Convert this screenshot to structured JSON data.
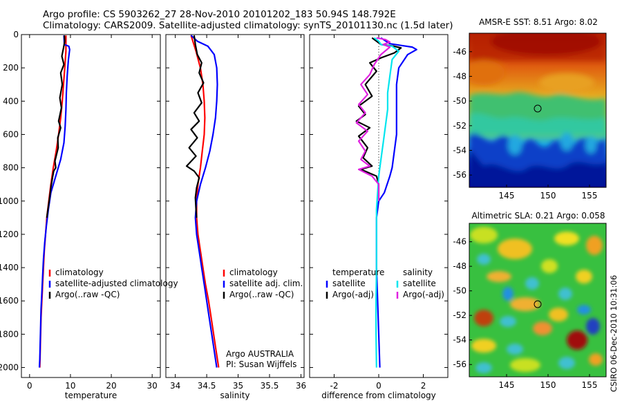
{
  "header": {
    "title_line1": "Argo profile: CS 5903262_27 28-Nov-2010 20101202_183 50.94S 148.792E",
    "title_line2": "Climatology: CARS2009. Satellite-adjusted climatology: synTS_20101130.nc (1.5d later)"
  },
  "footer_stamp": "CSIRO 06-Dec-2010 10:31:06",
  "colors": {
    "climatology": "#ff0000",
    "satellite": "#0000ff",
    "argo": "#000000",
    "sat_salinity": "#00e5ee",
    "argo_salinity": "#e020e0"
  },
  "chart_data": [
    {
      "type": "line",
      "xlabel": "temperature",
      "ylabel": "",
      "xlim": [
        -2,
        32
      ],
      "ylim": [
        2060,
        0
      ],
      "xticks": [
        "0",
        "10",
        "20",
        "30"
      ],
      "yticks": [
        "0",
        "200",
        "400",
        "600",
        "800",
        "1000",
        "1200",
        "1400",
        "1600",
        "1800",
        "2000"
      ],
      "legend": [
        "climatology",
        "satellite-adjusted climatology",
        "Argo(..raw -QC)"
      ],
      "series": [
        {
          "name": "climatology",
          "color": "#ff0000",
          "points": [
            [
              8.9,
              5
            ],
            [
              8.9,
              100
            ],
            [
              8.6,
              200
            ],
            [
              8.3,
              300
            ],
            [
              8.0,
              400
            ],
            [
              7.6,
              500
            ],
            [
              7.1,
              600
            ],
            [
              6.5,
              700
            ],
            [
              5.8,
              800
            ],
            [
              5.2,
              900
            ],
            [
              4.7,
              1000
            ],
            [
              4.2,
              1100
            ],
            [
              3.9,
              1200
            ],
            [
              3.6,
              1300
            ],
            [
              3.4,
              1400
            ],
            [
              3.2,
              1500
            ],
            [
              3.0,
              1600
            ],
            [
              2.8,
              1700
            ],
            [
              2.7,
              1800
            ],
            [
              2.6,
              1900
            ],
            [
              2.5,
              2000
            ]
          ]
        },
        {
          "name": "satellite-adjusted climatology",
          "color": "#0000ff",
          "points": [
            [
              8.4,
              5
            ],
            [
              8.5,
              60
            ],
            [
              9.6,
              70
            ],
            [
              9.8,
              90
            ],
            [
              9.5,
              150
            ],
            [
              9.2,
              250
            ],
            [
              9.0,
              350
            ],
            [
              8.9,
              450
            ],
            [
              8.7,
              550
            ],
            [
              8.4,
              650
            ],
            [
              7.6,
              750
            ],
            [
              6.4,
              850
            ],
            [
              5.2,
              950
            ],
            [
              4.6,
              1050
            ],
            [
              4.1,
              1150
            ],
            [
              3.7,
              1250
            ],
            [
              3.4,
              1350
            ],
            [
              3.2,
              1450
            ],
            [
              3.0,
              1550
            ],
            [
              2.8,
              1650
            ],
            [
              2.7,
              1750
            ],
            [
              2.6,
              1850
            ],
            [
              2.5,
              1950
            ],
            [
              2.4,
              2000
            ]
          ]
        },
        {
          "name": "Argo(..raw -QC)",
          "color": "#000000",
          "points": [
            [
              8.5,
              5
            ],
            [
              8.6,
              40
            ],
            [
              8.3,
              80
            ],
            [
              7.9,
              130
            ],
            [
              8.4,
              180
            ],
            [
              7.6,
              230
            ],
            [
              8.0,
              300
            ],
            [
              7.4,
              380
            ],
            [
              7.8,
              440
            ],
            [
              7.1,
              520
            ],
            [
              7.6,
              560
            ],
            [
              6.9,
              620
            ],
            [
              7.0,
              680
            ],
            [
              6.2,
              760
            ],
            [
              6.4,
              800
            ],
            [
              5.9,
              820
            ],
            [
              5.6,
              860
            ],
            [
              5.2,
              920
            ],
            [
              4.9,
              980
            ],
            [
              4.5,
              1050
            ],
            [
              4.2,
              1100
            ]
          ]
        }
      ]
    },
    {
      "type": "line",
      "xlabel": "salinity",
      "ylabel": "",
      "xlim": [
        33.85,
        36.05
      ],
      "ylim": [
        2060,
        0
      ],
      "xticks": [
        "34",
        "34.5",
        "35",
        "35.5",
        "36"
      ],
      "legend": [
        "climatology",
        "satellite adj. clim.",
        "Argo(..raw -QC)"
      ],
      "annotation": [
        "Argo AUSTRALIA",
        "PI: Susan Wijffels"
      ],
      "series": [
        {
          "name": "climatology",
          "color": "#ff0000",
          "points": [
            [
              34.25,
              5
            ],
            [
              34.33,
              100
            ],
            [
              34.4,
              200
            ],
            [
              34.44,
              300
            ],
            [
              34.46,
              400
            ],
            [
              34.47,
              500
            ],
            [
              34.46,
              600
            ],
            [
              34.43,
              700
            ],
            [
              34.4,
              800
            ],
            [
              34.36,
              900
            ],
            [
              34.34,
              1000
            ],
            [
              34.34,
              1100
            ],
            [
              34.36,
              1200
            ],
            [
              34.4,
              1300
            ],
            [
              34.44,
              1400
            ],
            [
              34.48,
              1500
            ],
            [
              34.53,
              1600
            ],
            [
              34.57,
              1700
            ],
            [
              34.61,
              1800
            ],
            [
              34.65,
              1900
            ],
            [
              34.69,
              2000
            ]
          ]
        },
        {
          "name": "satellite adj. clim.",
          "color": "#0000ff",
          "points": [
            [
              34.25,
              5
            ],
            [
              34.35,
              40
            ],
            [
              34.52,
              70
            ],
            [
              34.62,
              120
            ],
            [
              34.66,
              200
            ],
            [
              34.67,
              300
            ],
            [
              34.66,
              400
            ],
            [
              34.64,
              500
            ],
            [
              34.6,
              600
            ],
            [
              34.55,
              700
            ],
            [
              34.48,
              800
            ],
            [
              34.4,
              900
            ],
            [
              34.34,
              1000
            ],
            [
              34.32,
              1100
            ],
            [
              34.34,
              1200
            ],
            [
              34.38,
              1300
            ],
            [
              34.42,
              1400
            ],
            [
              34.46,
              1500
            ],
            [
              34.5,
              1600
            ],
            [
              34.54,
              1700
            ],
            [
              34.58,
              1800
            ],
            [
              34.62,
              1900
            ],
            [
              34.66,
              2000
            ]
          ]
        },
        {
          "name": "Argo(..raw -QC)",
          "color": "#000000",
          "points": [
            [
              34.3,
              5
            ],
            [
              34.32,
              60
            ],
            [
              34.35,
              120
            ],
            [
              34.42,
              170
            ],
            [
              34.38,
              230
            ],
            [
              34.45,
              290
            ],
            [
              34.36,
              350
            ],
            [
              34.42,
              410
            ],
            [
              34.3,
              470
            ],
            [
              34.38,
              520
            ],
            [
              34.25,
              570
            ],
            [
              34.35,
              620
            ],
            [
              34.22,
              680
            ],
            [
              34.33,
              730
            ],
            [
              34.18,
              790
            ],
            [
              34.3,
              820
            ],
            [
              34.38,
              860
            ],
            [
              34.34,
              920
            ],
            [
              34.32,
              980
            ],
            [
              34.33,
              1050
            ],
            [
              34.34,
              1100
            ]
          ]
        }
      ]
    },
    {
      "type": "line",
      "xlabel": "difference from climatology",
      "ylabel": "",
      "xlim": [
        -3.1,
        3.1
      ],
      "ylim": [
        2060,
        0
      ],
      "xticks": [
        "-2",
        "0",
        "2"
      ],
      "legend": [
        "temperature",
        "satellite",
        "Argo(-adj)",
        "salinity",
        "satellite",
        "Argo(-adj)"
      ],
      "series": [
        {
          "name": "satellite",
          "color": "#0000ff",
          "points": [
            [
              0.1,
              20
            ],
            [
              0.5,
              55
            ],
            [
              1.0,
              65
            ],
            [
              1.5,
              75
            ],
            [
              1.7,
              90
            ],
            [
              1.3,
              120
            ],
            [
              0.9,
              200
            ],
            [
              0.8,
              300
            ],
            [
              0.8,
              400
            ],
            [
              0.8,
              500
            ],
            [
              0.8,
              600
            ],
            [
              0.7,
              700
            ],
            [
              0.6,
              800
            ],
            [
              0.5,
              850
            ],
            [
              0.25,
              950
            ],
            [
              0.0,
              1000
            ],
            [
              -0.1,
              1100
            ],
            [
              -0.1,
              1200
            ],
            [
              -0.1,
              1400
            ],
            [
              -0.05,
              1600
            ],
            [
              0.0,
              1800
            ],
            [
              0.05,
              2000
            ]
          ]
        },
        {
          "name": "Argo(-adj)",
          "color": "#000000",
          "points": [
            [
              -0.3,
              20
            ],
            [
              0.1,
              60
            ],
            [
              0.7,
              70
            ],
            [
              1.0,
              80
            ],
            [
              0.7,
              110
            ],
            [
              0.1,
              140
            ],
            [
              -0.4,
              170
            ],
            [
              -0.1,
              220
            ],
            [
              -0.6,
              300
            ],
            [
              -0.3,
              370
            ],
            [
              -0.9,
              430
            ],
            [
              -0.6,
              480
            ],
            [
              -1.0,
              520
            ],
            [
              -0.4,
              560
            ],
            [
              -0.9,
              610
            ],
            [
              -0.5,
              680
            ],
            [
              -0.7,
              740
            ],
            [
              -0.3,
              790
            ],
            [
              -0.8,
              810
            ],
            [
              -0.1,
              850
            ],
            [
              0.0,
              900
            ],
            [
              0.0,
              1000
            ]
          ]
        },
        {
          "name": "satellite",
          "color": "#00e5ee",
          "points": [
            [
              -0.2,
              20
            ],
            [
              0.0,
              40
            ],
            [
              0.1,
              60
            ],
            [
              0.6,
              70
            ],
            [
              0.9,
              100
            ],
            [
              0.6,
              150
            ],
            [
              0.5,
              250
            ],
            [
              0.4,
              350
            ],
            [
              0.4,
              450
            ],
            [
              0.3,
              550
            ],
            [
              0.2,
              650
            ],
            [
              0.1,
              750
            ],
            [
              0.0,
              850
            ],
            [
              -0.05,
              950
            ],
            [
              -0.1,
              1050
            ],
            [
              -0.1,
              1200
            ],
            [
              -0.1,
              1400
            ],
            [
              -0.12,
              1600
            ],
            [
              -0.12,
              1800
            ],
            [
              -0.1,
              2000
            ]
          ]
        },
        {
          "name": "Argo(-adj)",
          "color": "#e020e0",
          "points": [
            [
              -0.1,
              20
            ],
            [
              0.3,
              30
            ],
            [
              0.5,
              45
            ],
            [
              0.2,
              60
            ],
            [
              0.5,
              75
            ],
            [
              0.1,
              120
            ],
            [
              -0.2,
              180
            ],
            [
              -0.4,
              240
            ],
            [
              -0.8,
              300
            ],
            [
              -0.5,
              360
            ],
            [
              -0.9,
              420
            ],
            [
              -0.6,
              470
            ],
            [
              -1.0,
              530
            ],
            [
              -0.5,
              580
            ],
            [
              -0.9,
              640
            ],
            [
              -0.6,
              700
            ],
            [
              -0.8,
              750
            ],
            [
              -0.4,
              790
            ],
            [
              -0.9,
              810
            ],
            [
              -0.3,
              850
            ],
            [
              0.0,
              900
            ],
            [
              0.0,
              1000
            ]
          ]
        }
      ]
    },
    {
      "type": "heatmap",
      "title": "AMSR-E SST: 8.51 Argo: 8.02",
      "xlim": [
        140.5,
        157
      ],
      "ylim": [
        -57,
        -44.5
      ],
      "xticks": [
        "145",
        "150",
        "155"
      ],
      "yticks": [
        "-46",
        "-48",
        "-50",
        "-52",
        "-54",
        "-56"
      ],
      "marker": [
        148.792,
        -50.94
      ]
    },
    {
      "type": "heatmap",
      "title": "Altimetric SLA: 0.21 Argo: 0.058",
      "xlim": [
        140.5,
        157
      ],
      "ylim": [
        -57,
        -44.5
      ],
      "xticks": [
        "145",
        "150",
        "155"
      ],
      "yticks": [
        "-46",
        "-48",
        "-50",
        "-52",
        "-54",
        "-56"
      ],
      "marker": [
        148.792,
        -50.94
      ]
    }
  ]
}
